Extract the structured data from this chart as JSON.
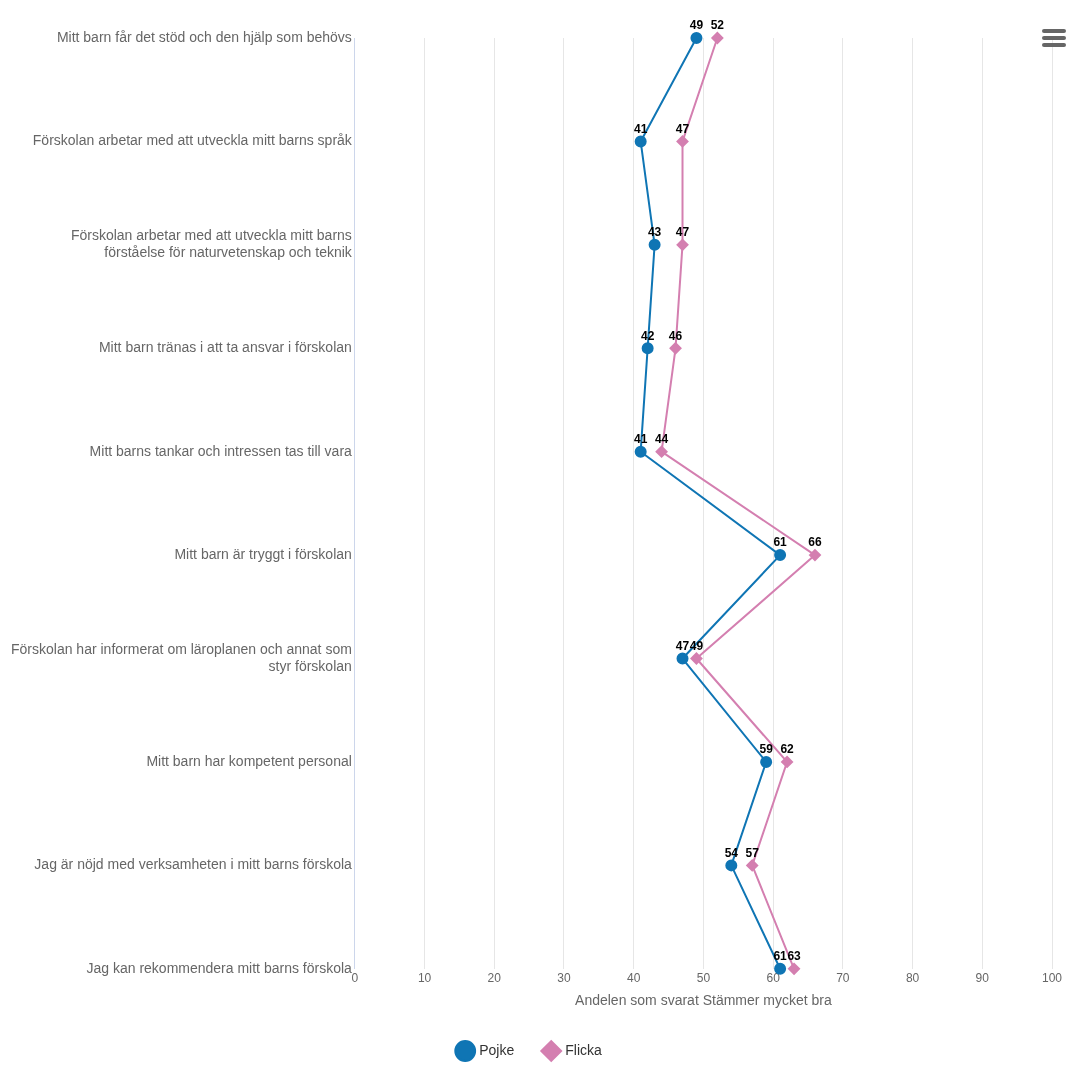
{
  "chart_data": {
    "type": "line",
    "orientation": "horizontal",
    "xlabel": "Andelen som svarat Stämmer mycket bra",
    "categories": [
      "Mitt barn får det stöd och den hjälp som behövs",
      "Förskolan arbetar med att utveckla mitt barns språk",
      "Förskolan arbetar med att utveckla mitt barns förståelse för naturvetenskap och teknik",
      "Mitt barn tränas i att ta ansvar i förskolan",
      "Mitt barns tankar och intressen tas till vara",
      "Mitt barn är tryggt i förskolan",
      "Förskolan har informerat om läroplanen och annat som styr förskolan",
      "Mitt barn har kompetent personal",
      "Jag är nöjd med verksamheten i mitt barns förskola",
      "Jag kan rekommendera mitt barns förskola"
    ],
    "series": [
      {
        "name": "Pojke",
        "color": "#0f75b4",
        "marker": "circle",
        "values": [
          49,
          41,
          43,
          42,
          41,
          61,
          47,
          59,
          54,
          61
        ]
      },
      {
        "name": "Flicka",
        "color": "#d47fb0",
        "marker": "diamond",
        "values": [
          52,
          47,
          47,
          46,
          44,
          66,
          49,
          62,
          57,
          63
        ]
      }
    ],
    "xlim": [
      0,
      100
    ],
    "xticks": [
      0,
      10,
      20,
      30,
      40,
      50,
      60,
      70,
      80,
      90,
      100
    ],
    "grid": "x",
    "legend": "bottom",
    "data_labels": true,
    "line_style": "solid"
  }
}
